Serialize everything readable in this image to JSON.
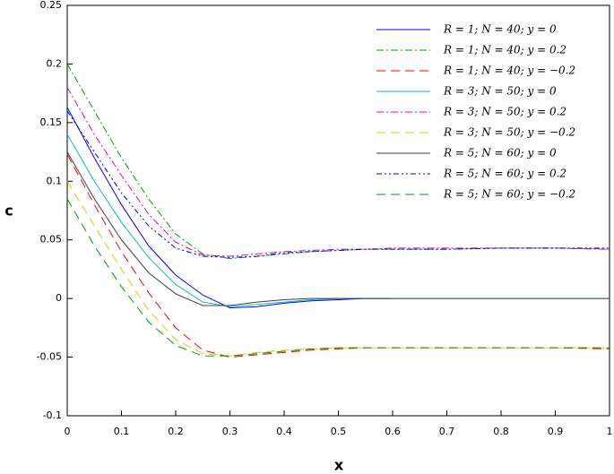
{
  "chart_data": {
    "type": "line",
    "x_label": "x",
    "y_label": "c",
    "xlim": [
      0,
      1
    ],
    "ylim": [
      -0.1,
      0.25
    ],
    "xticks": [
      0,
      0.1,
      0.2,
      0.3,
      0.4,
      0.5,
      0.6,
      0.7,
      0.8,
      0.9,
      1
    ],
    "yticks": [
      -0.1,
      -0.05,
      0,
      0.05,
      0.1,
      0.15,
      0.2,
      0.25
    ],
    "legend": "upper right",
    "x": [
      0,
      0.05,
      0.1,
      0.15,
      0.2,
      0.25,
      0.3,
      0.35,
      0.4,
      0.45,
      0.5,
      0.55,
      0.6,
      0.7,
      0.8,
      0.9,
      1
    ],
    "series": [
      {
        "name": "R = 1; N = 40; y = 0",
        "color": "#0000ff",
        "style": "solid",
        "values": [
          0.163,
          0.12,
          0.08,
          0.045,
          0.02,
          0.003,
          -0.008,
          -0.007,
          -0.004,
          -0.002,
          -0.001,
          0,
          0,
          null,
          null,
          null,
          null
        ]
      },
      {
        "name": "R = 1; N = 40; y = 0.2",
        "color": "#00a000",
        "style": "dashdot",
        "values": [
          0.2,
          0.16,
          0.12,
          0.085,
          0.055,
          0.038,
          0.034,
          0.036,
          0.038,
          0.04,
          0.041,
          0.042,
          0.042,
          0.042,
          0.043,
          0.043,
          0.042
        ]
      },
      {
        "name": "R = 1; N = 40; y = −0.2",
        "color": "#ff0000",
        "style": "dashed",
        "values": [
          0.123,
          0.08,
          0.04,
          0.005,
          -0.025,
          -0.044,
          -0.05,
          -0.048,
          -0.046,
          -0.044,
          -0.043,
          -0.042,
          -0.042,
          -0.042,
          -0.042,
          -0.042,
          -0.043
        ]
      },
      {
        "name": "R = 3; N = 50; y = 0",
        "color": "#00c0c0",
        "style": "solid",
        "values": [
          0.14,
          0.1,
          0.065,
          0.035,
          0.012,
          -0.003,
          -0.007,
          -0.005,
          -0.003,
          -0.001,
          0,
          0,
          0,
          0,
          0,
          0,
          0
        ]
      },
      {
        "name": "R = 3; N = 50; y = 0.2",
        "color": "#e000e0",
        "style": "dashdot",
        "values": [
          0.18,
          0.14,
          0.105,
          0.072,
          0.048,
          0.037,
          0.036,
          0.038,
          0.04,
          0.041,
          0.042,
          0.042,
          0.043,
          0.043,
          0.043,
          0.043,
          0.042
        ]
      },
      {
        "name": "R = 3; N = 50; y = −0.2",
        "color": "#d0d000",
        "style": "dashed",
        "values": [
          0.1,
          0.062,
          0.025,
          -0.01,
          -0.035,
          -0.047,
          -0.049,
          -0.046,
          -0.044,
          -0.043,
          -0.042,
          -0.042,
          -0.042,
          -0.042,
          -0.042,
          -0.042,
          -0.042
        ]
      },
      {
        "name": "R = 5; N = 60; y = 0",
        "color": "#404040",
        "style": "solid",
        "values": [
          0.125,
          0.085,
          0.05,
          0.022,
          0.004,
          -0.006,
          -0.006,
          -0.003,
          -0.001,
          0,
          0,
          0,
          0,
          0,
          0,
          0,
          0
        ]
      },
      {
        "name": "R = 5; N = 60; y = 0.2",
        "color": "#0000c0",
        "style": "dashdotdot",
        "values": [
          0.16,
          0.125,
          0.09,
          0.062,
          0.043,
          0.036,
          0.035,
          0.036,
          0.039,
          0.04,
          0.041,
          0.042,
          0.042,
          0.042,
          0.043,
          0.043,
          0.043
        ]
      },
      {
        "name": "R = 5; N = 60; y = −0.2",
        "color": "#00a000",
        "style": "dashed",
        "values": [
          0.085,
          0.045,
          0.01,
          -0.02,
          -0.04,
          -0.049,
          -0.049,
          -0.047,
          -0.045,
          -0.043,
          -0.042,
          -0.042,
          -0.042,
          -0.042,
          -0.042,
          -0.042,
          -0.042
        ]
      }
    ]
  }
}
